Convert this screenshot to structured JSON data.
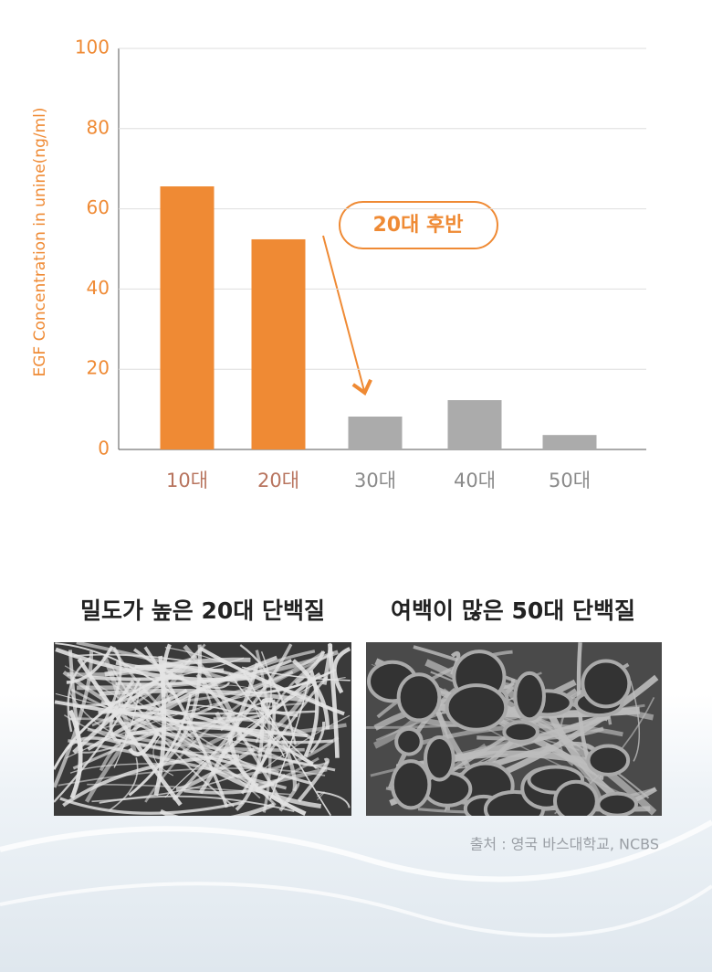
{
  "chart_data": {
    "type": "bar",
    "y_axis_label": "EGF Concentration in unine(ng/ml)",
    "categories": [
      "10대",
      "20대",
      "30대",
      "40대",
      "50대"
    ],
    "values": [
      65.6,
      52.4,
      8.2,
      12.3,
      3.6
    ],
    "colors": [
      "#ef8a34",
      "#ef8a34",
      "#ababab",
      "#ababab",
      "#ababab"
    ],
    "category_label_colors": [
      "#b8745e",
      "#b8745e",
      "#8a8a8a",
      "#8a8a8a",
      "#8a8a8a"
    ],
    "ylim": [
      0,
      100
    ],
    "yticks": [
      0,
      20,
      40,
      60,
      80,
      100
    ],
    "grid": true,
    "annotation": "20대 후반"
  },
  "comparison": {
    "panels": [
      {
        "title": "밀도가 높은 20대 단백질"
      },
      {
        "title": "여백이 많은 50대 단백질"
      }
    ],
    "source": "출처 : 영국 바스대학교, NCBS"
  }
}
